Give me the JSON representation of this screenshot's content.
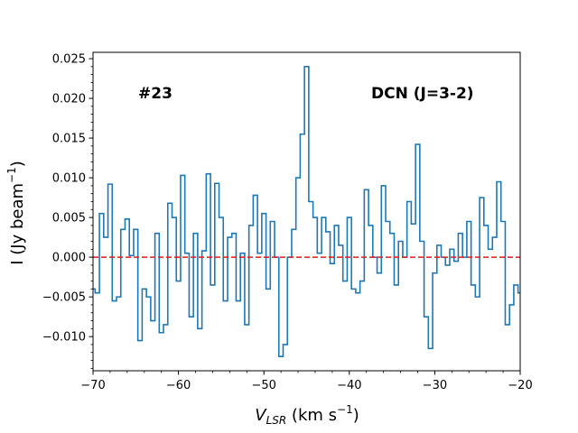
{
  "chart_data": {
    "type": "line",
    "drawstyle": "steps-mid",
    "title": "",
    "xlabel_prefix": "V",
    "xlabel_sub": "LSR",
    "xlabel_suffix": " (km s",
    "xlabel_sup": "−1",
    "xlabel_close": ")",
    "ylabel_prefix": "I (Jy beam",
    "ylabel_sup": "−1",
    "ylabel_close": ")",
    "xlim": [
      -70,
      -20
    ],
    "ylim": [
      -0.0143,
      0.0258
    ],
    "xticks": [
      -70,
      -60,
      -50,
      -40,
      -30,
      -20
    ],
    "xtick_labels": [
      "−70",
      "−60",
      "−50",
      "−40",
      "−30",
      "−20"
    ],
    "yticks": [
      -0.01,
      -0.005,
      0.0,
      0.005,
      0.01,
      0.015,
      0.02,
      0.025
    ],
    "ytick_labels": [
      "−0.010",
      "−0.005",
      "0.000",
      "0.005",
      "0.010",
      "0.015",
      "0.020",
      "0.025"
    ],
    "annotations": {
      "source_id": "#23",
      "line_name": "DCN (J=3-2)"
    },
    "series": [
      {
        "name": "DCN (J=3-2) spectrum",
        "color": "#1f77b4",
        "x": [
          -70.0,
          -69.5,
          -69.0,
          -68.5,
          -68.0,
          -67.5,
          -67.0,
          -66.5,
          -66.0,
          -65.5,
          -65.0,
          -64.5,
          -64.0,
          -63.5,
          -63.0,
          -62.5,
          -62.0,
          -61.5,
          -61.0,
          -60.5,
          -60.0,
          -59.5,
          -59.0,
          -58.5,
          -58.0,
          -57.5,
          -57.0,
          -56.5,
          -56.0,
          -55.5,
          -55.0,
          -54.5,
          -54.0,
          -53.5,
          -53.0,
          -52.5,
          -52.0,
          -51.5,
          -51.0,
          -50.5,
          -50.0,
          -49.5,
          -49.0,
          -48.5,
          -48.0,
          -47.5,
          -47.0,
          -46.5,
          -46.0,
          -45.5,
          -45.0,
          -44.5,
          -44.0,
          -43.5,
          -43.0,
          -42.5,
          -42.0,
          -41.5,
          -41.0,
          -40.5,
          -40.0,
          -39.5,
          -39.0,
          -38.5,
          -38.0,
          -37.5,
          -37.0,
          -36.5,
          -36.0,
          -35.5,
          -35.0,
          -34.5,
          -34.0,
          -33.5,
          -33.0,
          -32.5,
          -32.0,
          -31.5,
          -31.0,
          -30.5,
          -30.0,
          -29.5,
          -29.0,
          -28.5,
          -28.0,
          -27.5,
          -27.0,
          -26.5,
          -26.0,
          -25.5,
          -25.0,
          -24.5,
          -24.0,
          -23.5,
          -23.0,
          -22.5,
          -22.0,
          -21.5,
          -21.0,
          -20.5,
          -20.0
        ],
        "y": [
          -0.004,
          -0.0045,
          0.0055,
          0.0025,
          0.0092,
          -0.0055,
          -0.005,
          0.0035,
          0.0048,
          0.0002,
          0.0035,
          -0.0105,
          -0.004,
          -0.005,
          -0.008,
          0.003,
          -0.0095,
          -0.0085,
          0.0068,
          0.005,
          -0.003,
          0.0103,
          0.0005,
          -0.0075,
          0.003,
          -0.009,
          0.0008,
          0.0105,
          -0.0035,
          0.0093,
          0.005,
          -0.0055,
          0.0025,
          0.003,
          -0.0055,
          0.0005,
          -0.0085,
          0.004,
          0.0078,
          0.0005,
          0.0055,
          -0.004,
          0.0045,
          0.0,
          -0.0125,
          -0.011,
          0.0,
          0.0035,
          0.01,
          0.0155,
          0.024,
          0.007,
          0.005,
          0.0005,
          0.005,
          0.0032,
          -0.0008,
          0.004,
          0.0015,
          -0.003,
          0.005,
          -0.004,
          -0.0045,
          -0.003,
          0.0085,
          0.004,
          0.0,
          -0.002,
          0.009,
          0.0045,
          0.003,
          -0.0035,
          0.002,
          0.0,
          0.007,
          0.0042,
          0.0142,
          0.002,
          -0.0075,
          -0.0115,
          -0.002,
          0.0015,
          0.0,
          -0.001,
          0.001,
          -0.0005,
          0.003,
          0.0,
          0.0045,
          -0.0035,
          -0.005,
          0.0075,
          0.004,
          0.001,
          0.0025,
          0.0095,
          0.0045,
          -0.0085,
          -0.006,
          -0.0035,
          -0.0045
        ]
      }
    ],
    "reference_line": {
      "name": "zero baseline",
      "y": 0.0,
      "color": "#e41a1c",
      "style": "dashed"
    }
  }
}
